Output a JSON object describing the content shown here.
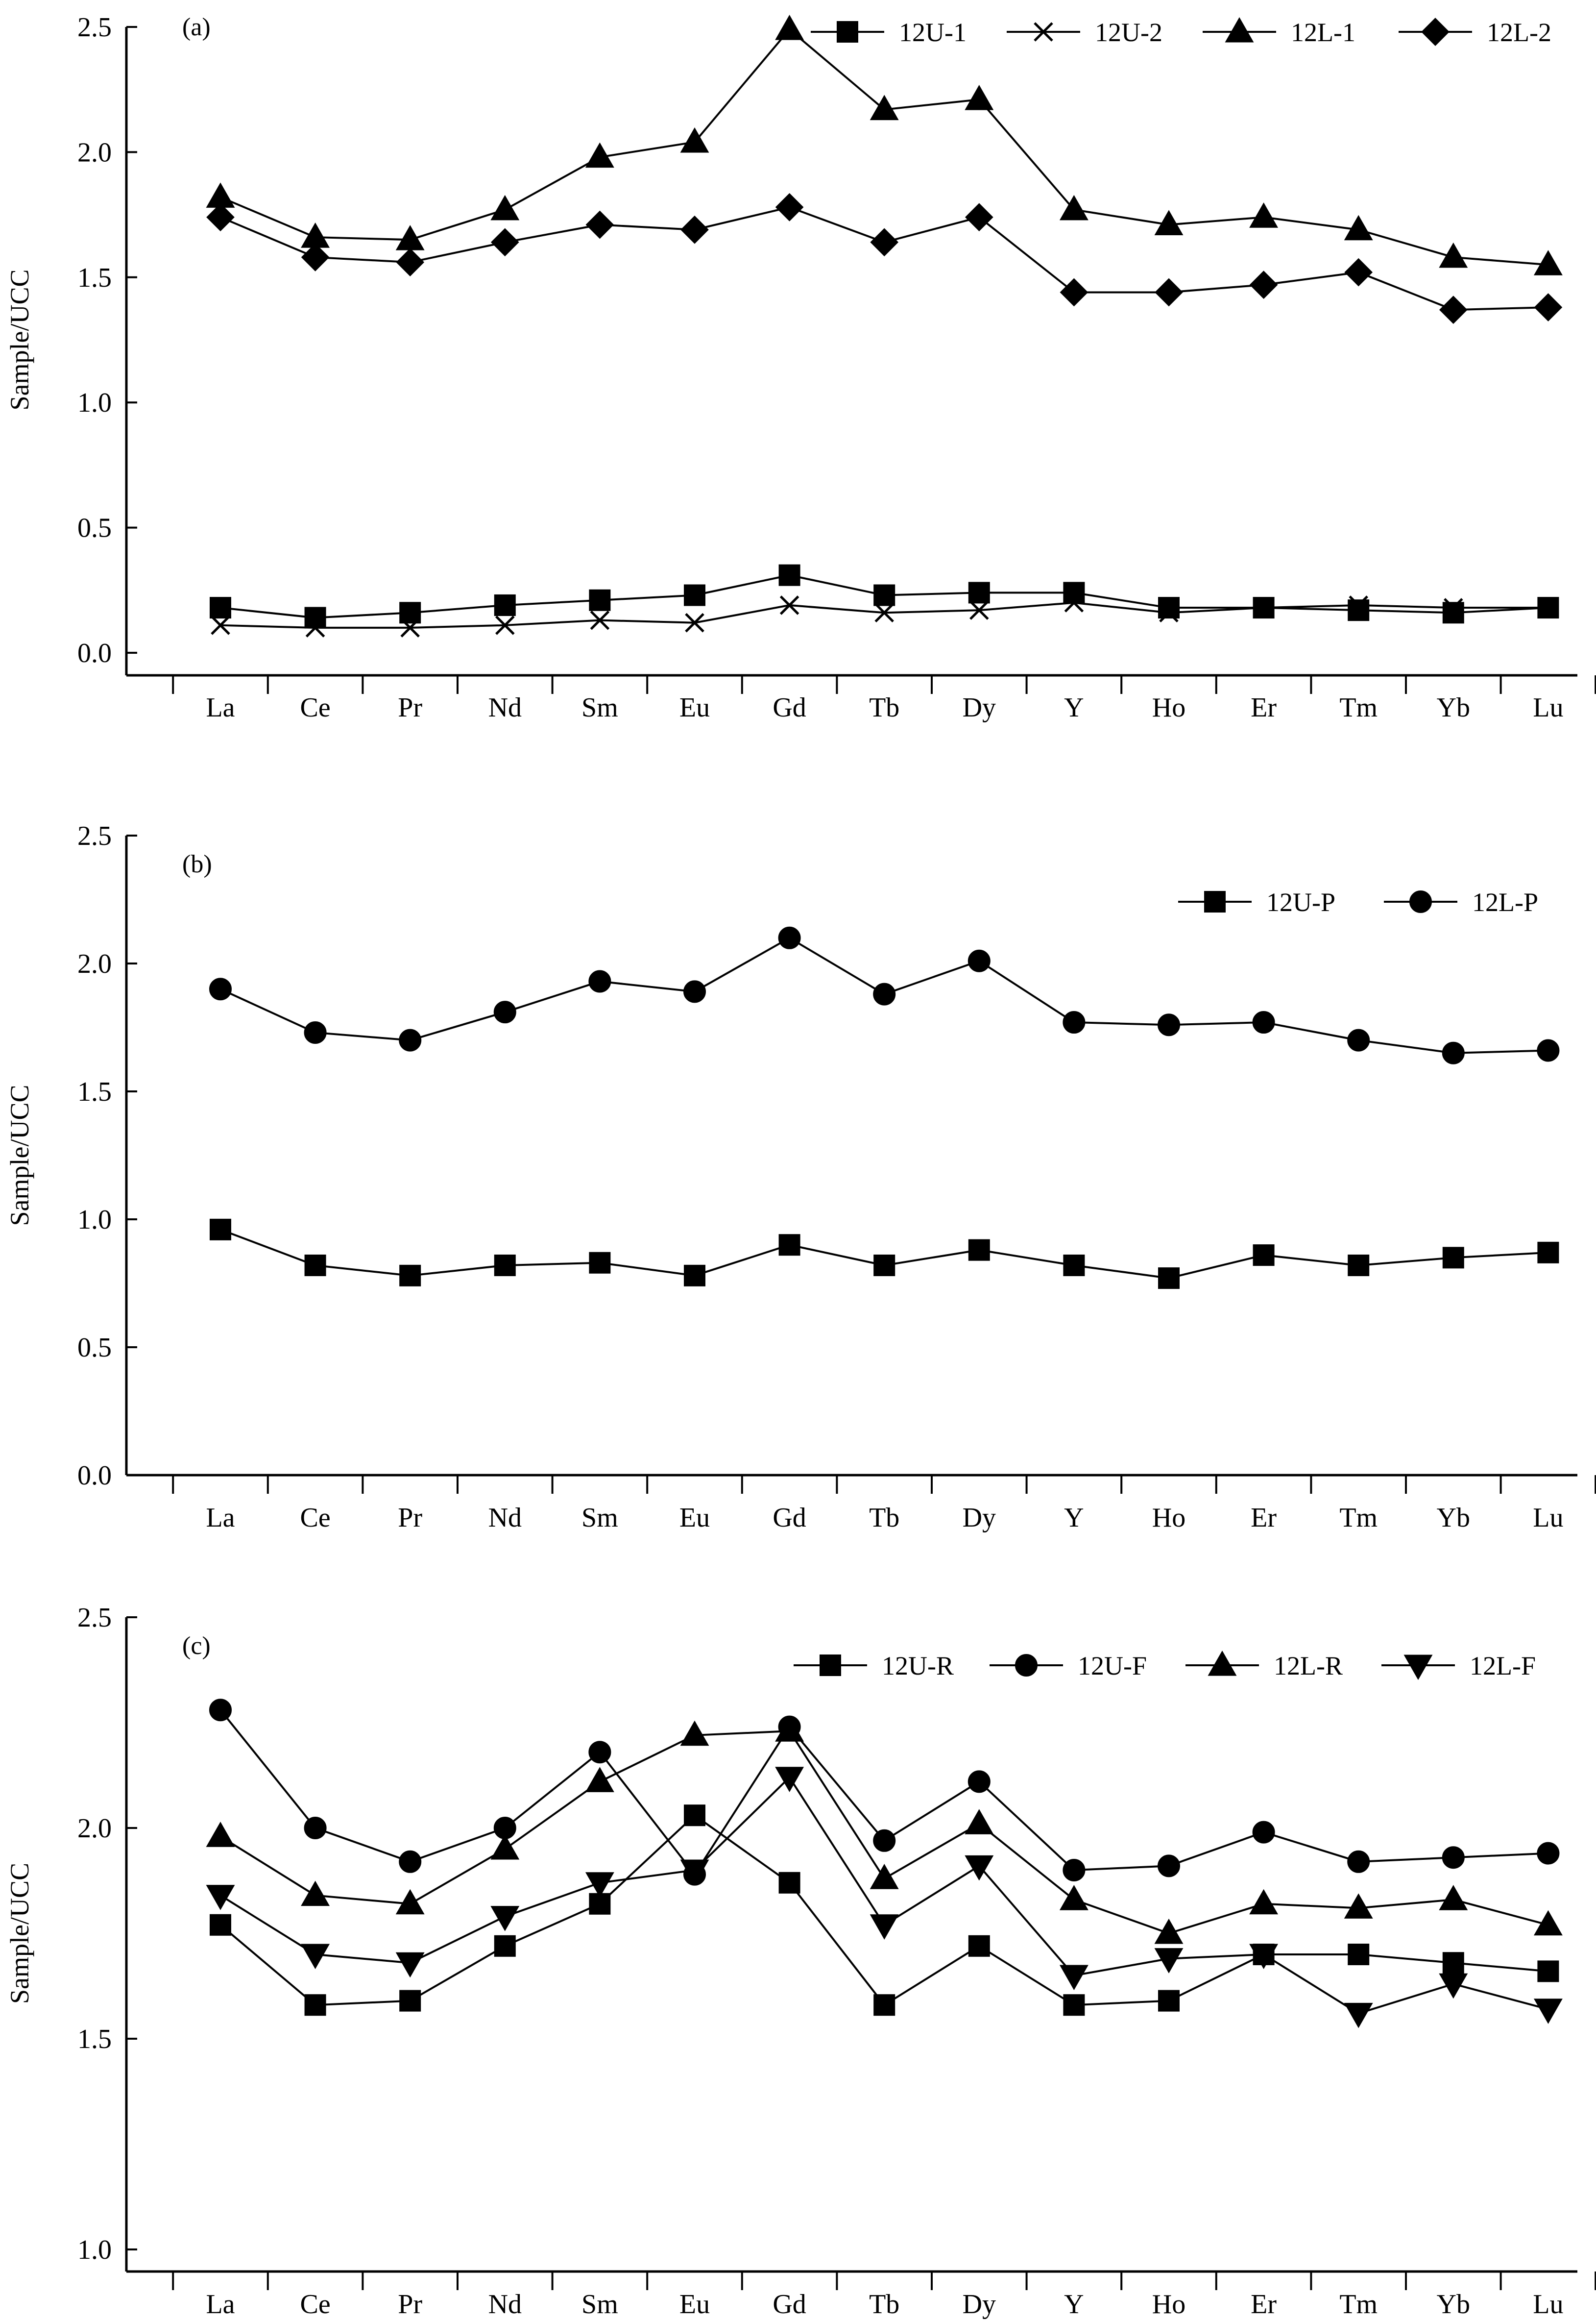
{
  "chart_data": [
    {
      "type": "line",
      "title": "(a)",
      "xlabel": "",
      "ylabel": "Sample/UCC",
      "ylim": [
        0,
        2.5
      ],
      "yticks": [
        "0.0",
        "0.5",
        "1.0",
        "1.5",
        "2.0",
        "2.5"
      ],
      "categories": [
        "La",
        "Ce",
        "Pr",
        "Nd",
        "Sm",
        "Eu",
        "Gd",
        "Tb",
        "Dy",
        "Y",
        "Ho",
        "Er",
        "Tm",
        "Yb",
        "Lu"
      ],
      "legend_position": "top-right",
      "series": [
        {
          "name": "12U-1",
          "marker": "square",
          "values": [
            0.18,
            0.14,
            0.16,
            0.19,
            0.21,
            0.23,
            0.31,
            0.23,
            0.24,
            0.24,
            0.18,
            0.18,
            0.17,
            0.16,
            0.18
          ]
        },
        {
          "name": "12U-2",
          "marker": "cross",
          "values": [
            0.11,
            0.1,
            0.1,
            0.11,
            0.13,
            0.12,
            0.19,
            0.16,
            0.17,
            0.2,
            0.16,
            0.18,
            0.19,
            0.18,
            0.18
          ]
        },
        {
          "name": "12L-1",
          "marker": "triangle-up",
          "values": [
            1.82,
            1.66,
            1.65,
            1.77,
            1.98,
            2.04,
            2.49,
            2.17,
            2.21,
            1.77,
            1.71,
            1.74,
            1.69,
            1.58,
            1.55
          ]
        },
        {
          "name": "12L-2",
          "marker": "diamond",
          "values": [
            1.74,
            1.58,
            1.56,
            1.64,
            1.71,
            1.69,
            1.78,
            1.64,
            1.74,
            1.44,
            1.44,
            1.47,
            1.52,
            1.37,
            1.38
          ]
        }
      ]
    },
    {
      "type": "line",
      "title": "(b)",
      "xlabel": "",
      "ylabel": "Sample/UCC",
      "ylim": [
        0,
        2.5
      ],
      "yticks": [
        "0.0",
        "0.5",
        "1.0",
        "1.5",
        "2.0",
        "2.5"
      ],
      "categories": [
        "La",
        "Ce",
        "Pr",
        "Nd",
        "Sm",
        "Eu",
        "Gd",
        "Tb",
        "Dy",
        "Y",
        "Ho",
        "Er",
        "Tm",
        "Yb",
        "Lu"
      ],
      "legend_position": "top-right",
      "series": [
        {
          "name": "12U-P",
          "marker": "square",
          "values": [
            0.96,
            0.82,
            0.78,
            0.82,
            0.83,
            0.78,
            0.9,
            0.82,
            0.88,
            0.82,
            0.77,
            0.86,
            0.82,
            0.85,
            0.87
          ]
        },
        {
          "name": "12L-P",
          "marker": "circle",
          "values": [
            1.9,
            1.73,
            1.7,
            1.81,
            1.93,
            1.89,
            2.1,
            1.88,
            2.01,
            1.77,
            1.76,
            1.77,
            1.7,
            1.65,
            1.66
          ]
        }
      ]
    },
    {
      "type": "line",
      "title": "(c)",
      "xlabel": "",
      "ylabel": "Sample/UCC",
      "ylim": [
        1.0,
        2.5
      ],
      "yticks": [
        "1.0",
        "1.5",
        "2.0",
        "2.5"
      ],
      "categories": [
        "La",
        "Ce",
        "Pr",
        "Nd",
        "Sm",
        "Eu",
        "Gd",
        "Tb",
        "Dy",
        "Y",
        "Ho",
        "Er",
        "Tm",
        "Yb",
        "Lu"
      ],
      "legend_position": "top-right",
      "series": [
        {
          "name": "12U-R",
          "marker": "square",
          "values": [
            1.77,
            1.58,
            1.59,
            1.72,
            1.82,
            2.03,
            1.87,
            1.58,
            1.72,
            1.58,
            1.59,
            1.7,
            1.7,
            1.68,
            1.66
          ]
        },
        {
          "name": "12U-F",
          "marker": "circle",
          "values": [
            2.28,
            2.0,
            1.92,
            2.0,
            2.18,
            1.89,
            2.24,
            1.97,
            2.11,
            1.9,
            1.91,
            1.99,
            1.92,
            1.93,
            1.94
          ]
        },
        {
          "name": "12L-R",
          "marker": "triangle-up",
          "values": [
            1.98,
            1.84,
            1.82,
            1.95,
            2.11,
            2.22,
            2.23,
            1.88,
            2.01,
            1.83,
            1.75,
            1.82,
            1.81,
            1.83,
            1.77
          ]
        },
        {
          "name": "12L-F",
          "marker": "triangle-down",
          "values": [
            1.84,
            1.7,
            1.68,
            1.79,
            1.87,
            1.9,
            2.12,
            1.77,
            1.91,
            1.65,
            1.69,
            1.7,
            1.56,
            1.63,
            1.57
          ]
        }
      ]
    }
  ]
}
